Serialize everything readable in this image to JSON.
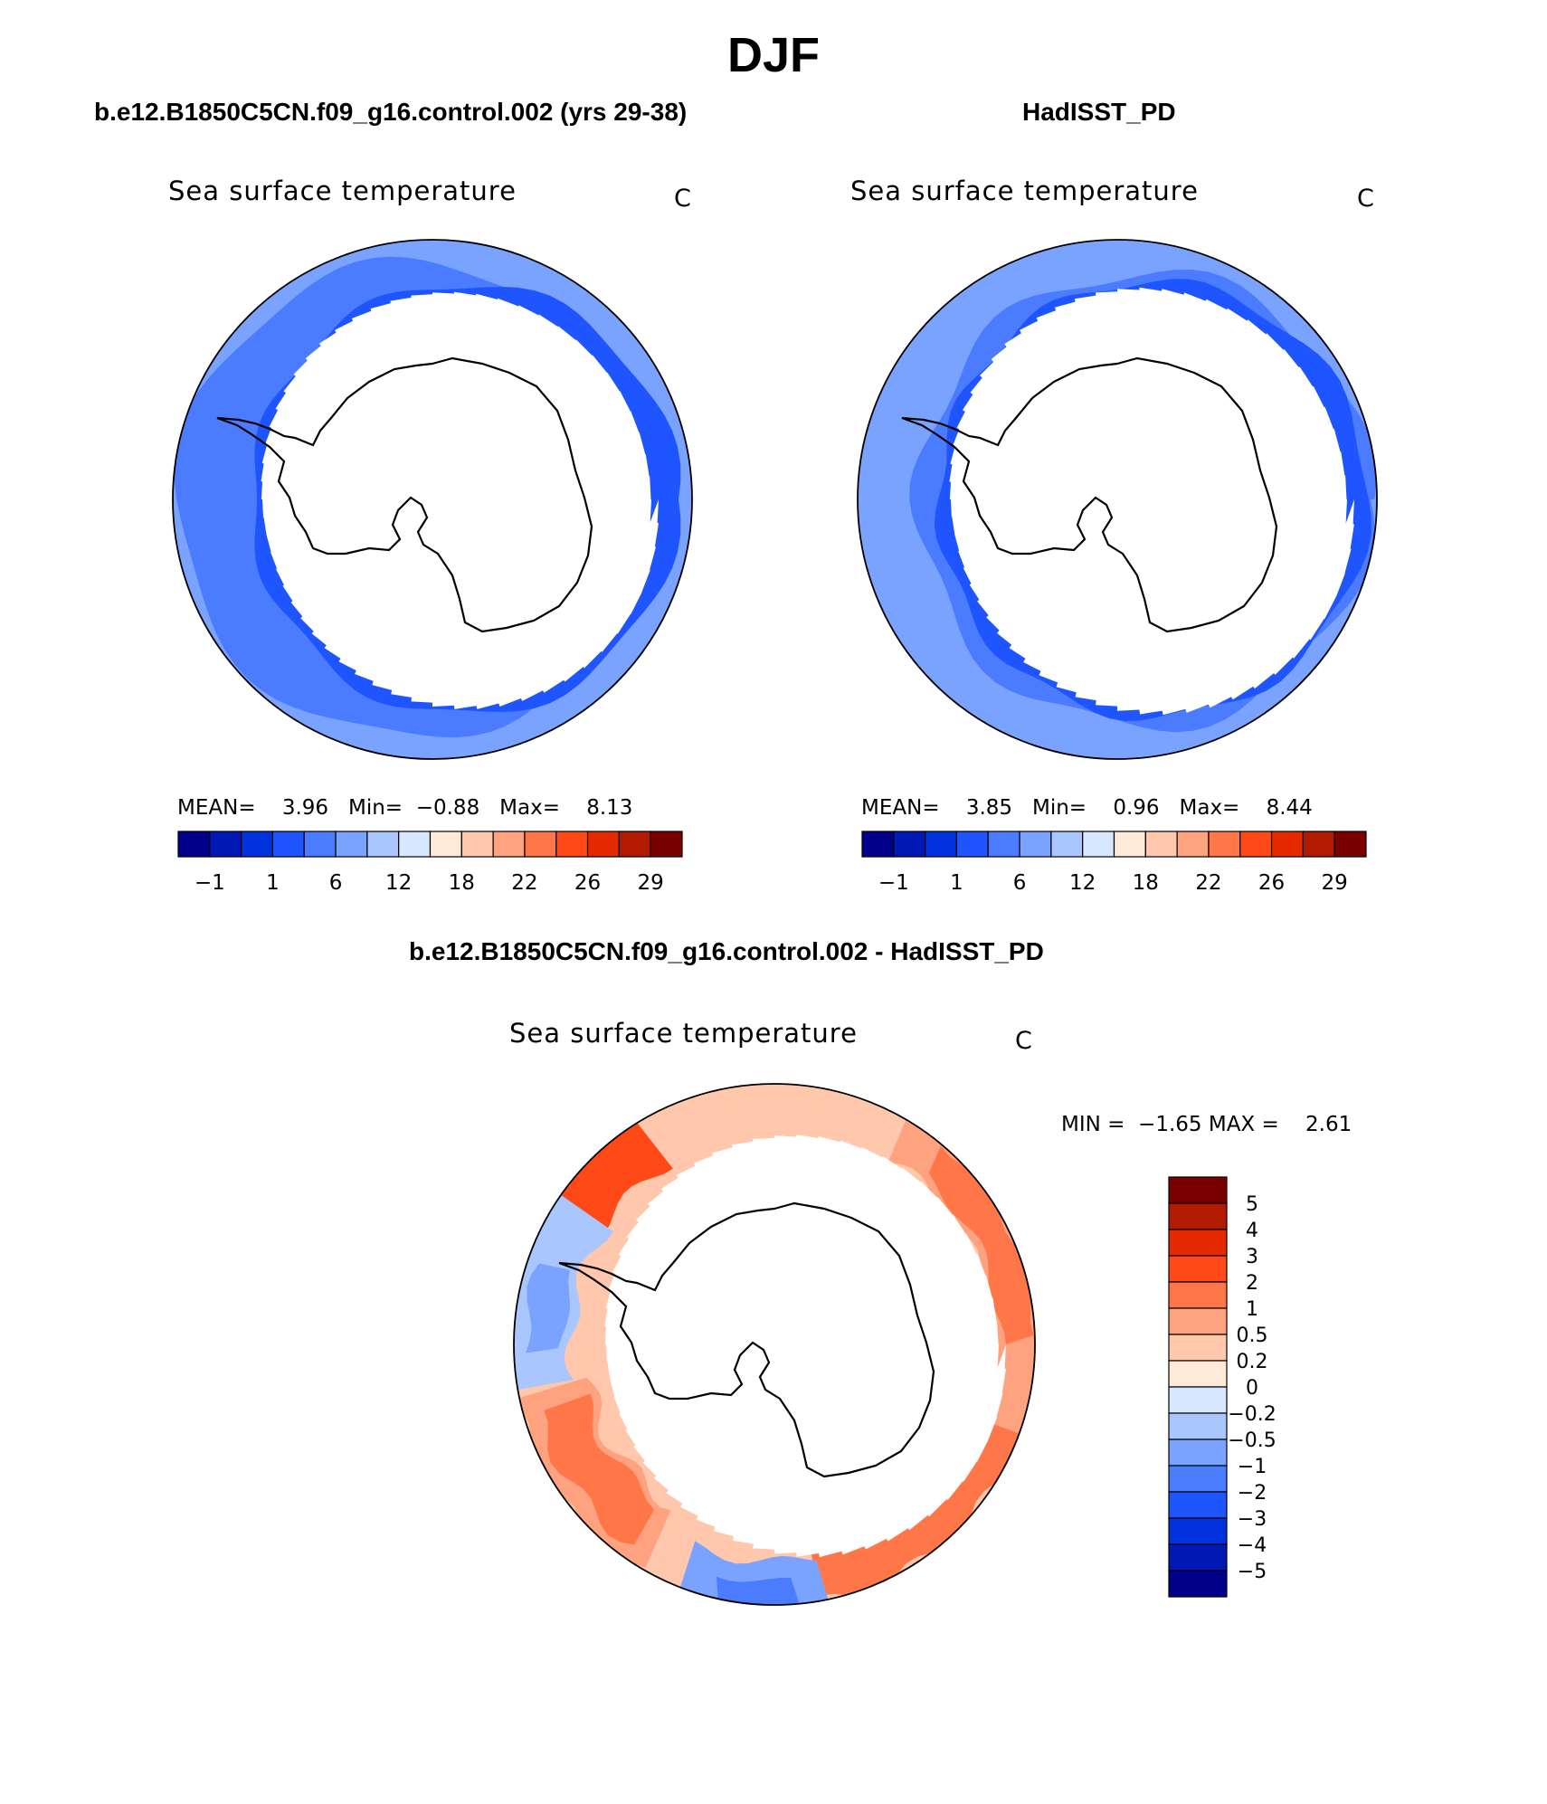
{
  "figure": {
    "season": "DJF",
    "panel_titles": {
      "left": "b.e12.B1850C5CN.f09_g16.control.002 (yrs 29-38)",
      "right": "HadISST_PD",
      "bottom": "b.e12.B1850C5CN.f09_g16.control.002 - HadISST_PD"
    }
  },
  "panels": [
    {
      "variable": "Sea surface temperature",
      "units": "C",
      "stats": {
        "mean_label": "MEAN=",
        "mean": "3.96",
        "min_label": "Min=",
        "min": "−0.88",
        "max_label": "Max=",
        "max": "8.13"
      }
    },
    {
      "variable": "Sea surface temperature",
      "units": "C",
      "stats": {
        "mean_label": "MEAN=",
        "mean": "3.85",
        "min_label": "Min=",
        "min": "0.96",
        "max_label": "Max=",
        "max": "8.44"
      }
    },
    {
      "variable": "Sea surface temperature",
      "units": "C",
      "stats": {
        "min_label": "MIN =",
        "min": "−1.65",
        "max_label": "MAX =",
        "max": "2.61"
      }
    }
  ],
  "colorbars": {
    "absolute": {
      "colors": [
        "#00008b",
        "#0019b4",
        "#0033dd",
        "#1f55ff",
        "#4b7cff",
        "#7aa3ff",
        "#a9c6ff",
        "#d6e8ff",
        "#ffe9d8",
        "#ffc8ad",
        "#ffa27f",
        "#ff7749",
        "#ff4a17",
        "#e62a00",
        "#b21b00",
        "#7a0000"
      ],
      "tick_labels": [
        "−1",
        "1",
        "6",
        "12",
        "18",
        "22",
        "26",
        "29"
      ]
    },
    "difference": {
      "colors": [
        "#7a0000",
        "#b21b00",
        "#e62a00",
        "#ff4a17",
        "#ff7749",
        "#ffa27f",
        "#ffc8ad",
        "#ffe9d8",
        "#d6e8ff",
        "#a9c6ff",
        "#7aa3ff",
        "#4b7cff",
        "#1f55ff",
        "#0033dd",
        "#0019b4",
        "#00008b"
      ],
      "tick_labels": [
        "5",
        "4",
        "3",
        "2",
        "1",
        "0.5",
        "0.2",
        "0",
        "−0.2",
        "−0.5",
        "−1",
        "−2",
        "−3",
        "−4",
        "−5"
      ]
    }
  },
  "map_colors": {
    "model": [
      "#7aa3ff",
      "#4b7cff",
      "#1f55ff"
    ],
    "obs": [
      "#7aa3ff",
      "#4b7cff",
      "#1f55ff"
    ],
    "diff": [
      "#ffc8ad",
      "#ffa27f",
      "#ff7749",
      "#ff4a17",
      "#a9c6ff",
      "#7aa3ff",
      "#4b7cff",
      "#d6e8ff"
    ]
  }
}
